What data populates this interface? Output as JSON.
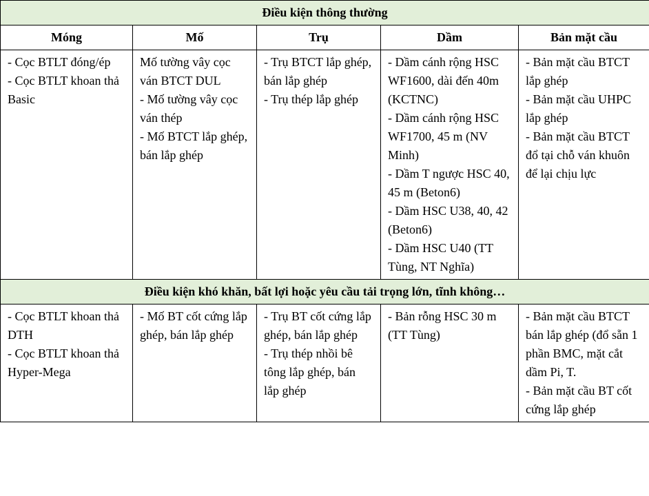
{
  "table": {
    "section1_title": "Điều kiện thông thường",
    "section2_title": "Điều kiện khó khăn, bất lợi hoặc yêu cầu tải trọng lớn, tĩnh không…",
    "columns": {
      "c1": "Móng",
      "c2": "Mố",
      "c3": "Trụ",
      "c4": "Dầm",
      "c5": "Bản mặt cầu"
    },
    "col_widths": {
      "c1": "192px",
      "c2": "180px",
      "c3": "180px",
      "c4": "200px",
      "c5": "190px"
    },
    "section1": {
      "mong": {
        "l1": "- Cọc BTLT đóng/ép",
        "l2": "- Cọc BTLT khoan thả Basic"
      },
      "mo": {
        "l1": "Mố tường vây cọc ván BTCT DUL",
        "l2": "- Mố tường vây cọc ván thép",
        "l3": "- Mố BTCT lắp ghép, bán lắp ghép"
      },
      "tru": {
        "l1": "- Trụ BTCT lắp ghép, bán lắp ghép",
        "l2": "- Trụ thép lắp ghép"
      },
      "dam": {
        "l1": "- Dầm cánh rộng HSC WF1600, dài đến 40m (KCTNC)",
        "l2": "- Dầm cánh rộng HSC WF1700, 45 m (NV Minh)",
        "l3": "- Dầm T ngược HSC 40, 45 m (Beton6)",
        "l4": "- Dầm HSC U38, 40, 42 (Beton6)",
        "l5": "- Dầm HSC U40 (TT Tùng, NT Nghĩa)"
      },
      "ban": {
        "l1": "- Bản mặt cầu BTCT lắp ghép",
        "l2": "- Bản mặt cầu UHPC lắp ghép",
        "l3": "- Bản mặt cầu BTCT đổ tại chỗ ván khuôn để lại chịu lực"
      }
    },
    "section2": {
      "mong": {
        "l1": "- Cọc BTLT khoan thả DTH",
        "l2": "- Cọc BTLT khoan thả Hyper-Mega"
      },
      "mo": {
        "l1": "- Mố BT cốt cứng lắp ghép, bán lắp ghép"
      },
      "tru": {
        "l1": "- Trụ BT cốt cứng lắp ghép, bán lắp ghép",
        "l2": "- Trụ thép nhồi bê tông lắp ghép, bán lắp ghép"
      },
      "dam": {
        "l1": "- Bản rỗng HSC 30 m (TT Tùng)"
      },
      "ban": {
        "l1": "- Bản mặt cầu BTCT bán lắp ghép (đổ sẵn 1 phần BMC, mặt cắt dầm Pi, T.",
        "l2": "- Bản mặt cầu BT cốt cứng lắp ghép"
      }
    },
    "colors": {
      "header_bg": "#e2efd9",
      "border": "#000000",
      "text": "#000000"
    },
    "font": {
      "family": "Times New Roman",
      "size_pt": 14
    }
  }
}
